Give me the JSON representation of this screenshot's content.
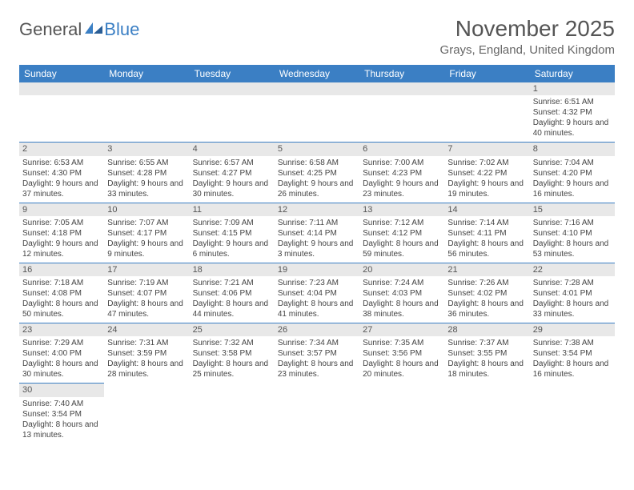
{
  "logo": {
    "text1": "General",
    "text2": "Blue"
  },
  "title": "November 2025",
  "location": "Grays, England, United Kingdom",
  "colors": {
    "header_bg": "#3b7fc4",
    "daynum_bg": "#e8e8e8",
    "text": "#444444"
  },
  "day_headers": [
    "Sunday",
    "Monday",
    "Tuesday",
    "Wednesday",
    "Thursday",
    "Friday",
    "Saturday"
  ],
  "weeks": [
    [
      null,
      null,
      null,
      null,
      null,
      null,
      {
        "n": "1",
        "sr": "Sunrise: 6:51 AM",
        "ss": "Sunset: 4:32 PM",
        "dl": "Daylight: 9 hours and 40 minutes."
      }
    ],
    [
      {
        "n": "2",
        "sr": "Sunrise: 6:53 AM",
        "ss": "Sunset: 4:30 PM",
        "dl": "Daylight: 9 hours and 37 minutes."
      },
      {
        "n": "3",
        "sr": "Sunrise: 6:55 AM",
        "ss": "Sunset: 4:28 PM",
        "dl": "Daylight: 9 hours and 33 minutes."
      },
      {
        "n": "4",
        "sr": "Sunrise: 6:57 AM",
        "ss": "Sunset: 4:27 PM",
        "dl": "Daylight: 9 hours and 30 minutes."
      },
      {
        "n": "5",
        "sr": "Sunrise: 6:58 AM",
        "ss": "Sunset: 4:25 PM",
        "dl": "Daylight: 9 hours and 26 minutes."
      },
      {
        "n": "6",
        "sr": "Sunrise: 7:00 AM",
        "ss": "Sunset: 4:23 PM",
        "dl": "Daylight: 9 hours and 23 minutes."
      },
      {
        "n": "7",
        "sr": "Sunrise: 7:02 AM",
        "ss": "Sunset: 4:22 PM",
        "dl": "Daylight: 9 hours and 19 minutes."
      },
      {
        "n": "8",
        "sr": "Sunrise: 7:04 AM",
        "ss": "Sunset: 4:20 PM",
        "dl": "Daylight: 9 hours and 16 minutes."
      }
    ],
    [
      {
        "n": "9",
        "sr": "Sunrise: 7:05 AM",
        "ss": "Sunset: 4:18 PM",
        "dl": "Daylight: 9 hours and 12 minutes."
      },
      {
        "n": "10",
        "sr": "Sunrise: 7:07 AM",
        "ss": "Sunset: 4:17 PM",
        "dl": "Daylight: 9 hours and 9 minutes."
      },
      {
        "n": "11",
        "sr": "Sunrise: 7:09 AM",
        "ss": "Sunset: 4:15 PM",
        "dl": "Daylight: 9 hours and 6 minutes."
      },
      {
        "n": "12",
        "sr": "Sunrise: 7:11 AM",
        "ss": "Sunset: 4:14 PM",
        "dl": "Daylight: 9 hours and 3 minutes."
      },
      {
        "n": "13",
        "sr": "Sunrise: 7:12 AM",
        "ss": "Sunset: 4:12 PM",
        "dl": "Daylight: 8 hours and 59 minutes."
      },
      {
        "n": "14",
        "sr": "Sunrise: 7:14 AM",
        "ss": "Sunset: 4:11 PM",
        "dl": "Daylight: 8 hours and 56 minutes."
      },
      {
        "n": "15",
        "sr": "Sunrise: 7:16 AM",
        "ss": "Sunset: 4:10 PM",
        "dl": "Daylight: 8 hours and 53 minutes."
      }
    ],
    [
      {
        "n": "16",
        "sr": "Sunrise: 7:18 AM",
        "ss": "Sunset: 4:08 PM",
        "dl": "Daylight: 8 hours and 50 minutes."
      },
      {
        "n": "17",
        "sr": "Sunrise: 7:19 AM",
        "ss": "Sunset: 4:07 PM",
        "dl": "Daylight: 8 hours and 47 minutes."
      },
      {
        "n": "18",
        "sr": "Sunrise: 7:21 AM",
        "ss": "Sunset: 4:06 PM",
        "dl": "Daylight: 8 hours and 44 minutes."
      },
      {
        "n": "19",
        "sr": "Sunrise: 7:23 AM",
        "ss": "Sunset: 4:04 PM",
        "dl": "Daylight: 8 hours and 41 minutes."
      },
      {
        "n": "20",
        "sr": "Sunrise: 7:24 AM",
        "ss": "Sunset: 4:03 PM",
        "dl": "Daylight: 8 hours and 38 minutes."
      },
      {
        "n": "21",
        "sr": "Sunrise: 7:26 AM",
        "ss": "Sunset: 4:02 PM",
        "dl": "Daylight: 8 hours and 36 minutes."
      },
      {
        "n": "22",
        "sr": "Sunrise: 7:28 AM",
        "ss": "Sunset: 4:01 PM",
        "dl": "Daylight: 8 hours and 33 minutes."
      }
    ],
    [
      {
        "n": "23",
        "sr": "Sunrise: 7:29 AM",
        "ss": "Sunset: 4:00 PM",
        "dl": "Daylight: 8 hours and 30 minutes."
      },
      {
        "n": "24",
        "sr": "Sunrise: 7:31 AM",
        "ss": "Sunset: 3:59 PM",
        "dl": "Daylight: 8 hours and 28 minutes."
      },
      {
        "n": "25",
        "sr": "Sunrise: 7:32 AM",
        "ss": "Sunset: 3:58 PM",
        "dl": "Daylight: 8 hours and 25 minutes."
      },
      {
        "n": "26",
        "sr": "Sunrise: 7:34 AM",
        "ss": "Sunset: 3:57 PM",
        "dl": "Daylight: 8 hours and 23 minutes."
      },
      {
        "n": "27",
        "sr": "Sunrise: 7:35 AM",
        "ss": "Sunset: 3:56 PM",
        "dl": "Daylight: 8 hours and 20 minutes."
      },
      {
        "n": "28",
        "sr": "Sunrise: 7:37 AM",
        "ss": "Sunset: 3:55 PM",
        "dl": "Daylight: 8 hours and 18 minutes."
      },
      {
        "n": "29",
        "sr": "Sunrise: 7:38 AM",
        "ss": "Sunset: 3:54 PM",
        "dl": "Daylight: 8 hours and 16 minutes."
      }
    ],
    [
      {
        "n": "30",
        "sr": "Sunrise: 7:40 AM",
        "ss": "Sunset: 3:54 PM",
        "dl": "Daylight: 8 hours and 13 minutes."
      },
      null,
      null,
      null,
      null,
      null,
      null
    ]
  ]
}
